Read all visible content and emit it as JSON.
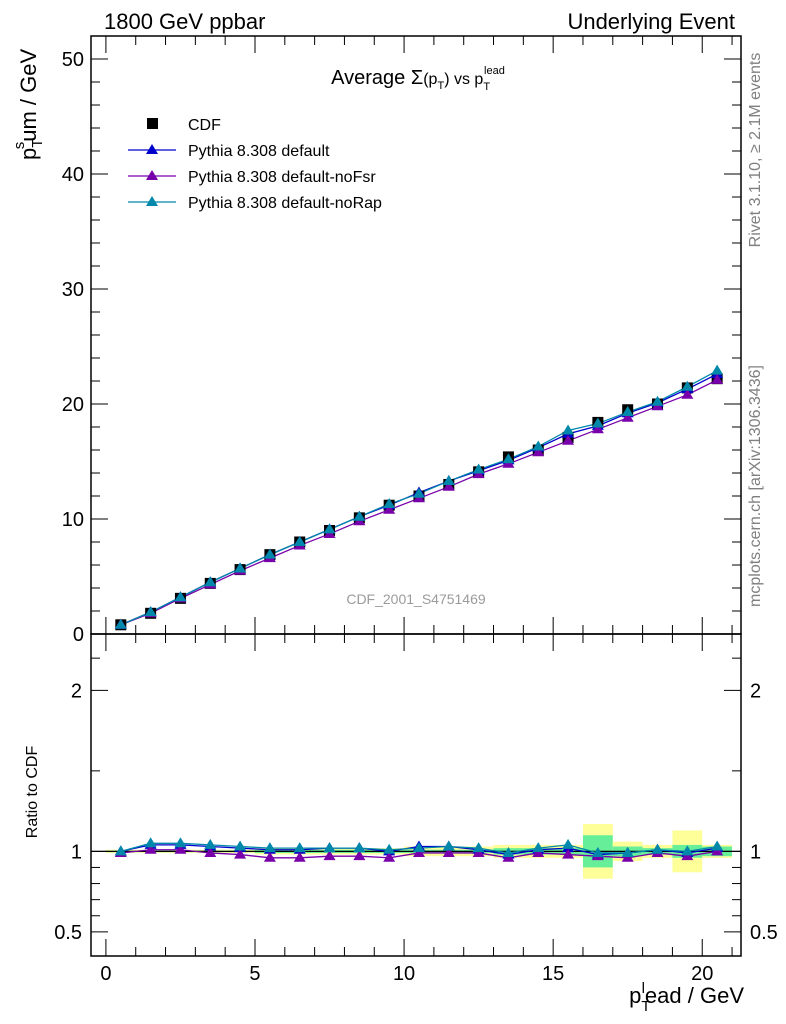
{
  "header": {
    "left": "1800 GeV ppbar",
    "right": "Underlying Event"
  },
  "side_text": {
    "rivet": "Rivet 3.1.10, ≥ 2.1M events",
    "mcplots": "mcplots.cern.ch [arXiv:1306.3436]"
  },
  "chart_data": [
    {
      "type": "line",
      "title": "Average Σ(p_T) vs p_T^lead",
      "title_parts": {
        "main": "Average ",
        "sigma": "Σ",
        "paren_open": "(p",
        "sub1": "T",
        "paren_close": ")",
        "vs": " vs p",
        "sub2": "T",
        "sup2": "lead"
      },
      "ylabel": "p_T^sum / GeV",
      "ylabel_parts": {
        "p": "p",
        "sub": "T",
        "sup": "s",
        "rest": "um / GeV"
      },
      "xlabel": "p_T^lead / GeV",
      "xlabel_parts": {
        "p": "p",
        "sub": "T",
        "sup": "l",
        "rest": "ead / GeV"
      },
      "annotation": "CDF_2001_S4751469",
      "xlim": [
        -0.5,
        21.3
      ],
      "ylim": [
        0,
        52
      ],
      "y_ticks": [
        "0",
        "10",
        "20",
        "30",
        "40",
        "50"
      ],
      "x": [
        0.5,
        1.5,
        2.5,
        3.5,
        4.5,
        5.5,
        6.5,
        7.5,
        8.5,
        9.5,
        10.5,
        11.5,
        12.5,
        13.5,
        14.5,
        15.5,
        16.5,
        17.5,
        18.5,
        19.5,
        20.5
      ],
      "legend": {
        "placement": "top-left"
      },
      "series": [
        {
          "name": "CDF",
          "color": "#000000",
          "marker": "square",
          "values": [
            0.8,
            1.8,
            3.1,
            4.4,
            5.6,
            6.9,
            8.0,
            9.0,
            10.1,
            11.2,
            12.0,
            13.0,
            14.1,
            15.4,
            16.0,
            17.1,
            18.4,
            19.5,
            20.0,
            21.4,
            22.2
          ]
        },
        {
          "name": "Pythia 8.308 default",
          "color": "#0000cc",
          "marker": "triangle",
          "values": [
            0.8,
            1.9,
            3.2,
            4.5,
            5.7,
            6.9,
            8.0,
            9.1,
            10.2,
            11.2,
            12.3,
            13.3,
            14.2,
            15.1,
            16.2,
            17.4,
            18.1,
            19.2,
            20.1,
            21.3,
            22.6
          ]
        },
        {
          "name": "Pythia 8.308 default-noFsr",
          "color": "#7700aa",
          "marker": "triangle",
          "values": [
            0.8,
            1.8,
            3.1,
            4.3,
            5.5,
            6.6,
            7.7,
            8.7,
            9.8,
            10.8,
            11.8,
            12.8,
            13.9,
            14.8,
            15.8,
            16.8,
            17.8,
            18.8,
            19.8,
            20.8,
            22.1
          ]
        },
        {
          "name": "Pythia 8.308 default-noRap",
          "color": "#0088aa",
          "marker": "triangle",
          "values": [
            0.8,
            1.9,
            3.2,
            4.5,
            5.7,
            6.9,
            8.0,
            9.1,
            10.2,
            11.3,
            12.2,
            13.3,
            14.3,
            15.2,
            16.3,
            17.7,
            18.3,
            19.3,
            20.2,
            21.5,
            22.9
          ]
        }
      ]
    },
    {
      "type": "line",
      "ylabel": "Ratio to CDF",
      "xlabel": "p_T^lead / GeV",
      "xlim": [
        -0.5,
        21.3
      ],
      "ylim": [
        0.35,
        2.35
      ],
      "y_ticks": [
        "0.5",
        "1",
        "2"
      ],
      "x_ticks": [
        "0",
        "5",
        "10",
        "15",
        "20"
      ],
      "x": [
        0.5,
        1.5,
        2.5,
        3.5,
        4.5,
        5.5,
        6.5,
        7.5,
        8.5,
        9.5,
        10.5,
        11.5,
        12.5,
        13.5,
        14.5,
        15.5,
        16.5,
        17.5,
        18.5,
        19.5,
        20.5
      ],
      "uncertainty_band": {
        "colors": {
          "stat": "#66ee99",
          "total": "#ffff99"
        },
        "total": [
          0.01,
          0.01,
          0.01,
          0.01,
          0.01,
          0.02,
          0.02,
          0.02,
          0.02,
          0.02,
          0.03,
          0.03,
          0.03,
          0.04,
          0.04,
          0.04,
          0.17,
          0.06,
          0.04,
          0.13,
          0.04
        ],
        "stat": [
          0.005,
          0.005,
          0.005,
          0.005,
          0.005,
          0.01,
          0.01,
          0.01,
          0.01,
          0.01,
          0.01,
          0.01,
          0.01,
          0.02,
          0.02,
          0.02,
          0.1,
          0.03,
          0.02,
          0.04,
          0.03
        ]
      },
      "series": [
        {
          "name": "Pythia 8.308 default",
          "color": "#0000cc",
          "values": [
            1.0,
            1.04,
            1.04,
            1.03,
            1.02,
            1.01,
            1.01,
            1.02,
            1.02,
            1.0,
            1.03,
            1.03,
            1.01,
            0.98,
            1.01,
            1.02,
            0.98,
            0.99,
            1.01,
            0.99,
            1.02
          ]
        },
        {
          "name": "Pythia 8.308 default-noFsr",
          "color": "#7700aa",
          "values": [
            0.99,
            1.01,
            1.01,
            0.99,
            0.98,
            0.96,
            0.96,
            0.97,
            0.97,
            0.96,
            0.99,
            0.99,
            0.99,
            0.96,
            0.99,
            0.98,
            0.97,
            0.96,
            0.99,
            0.97,
            1.0
          ]
        },
        {
          "name": "Pythia 8.308 default-noRap",
          "color": "#0088aa",
          "values": [
            1.0,
            1.05,
            1.05,
            1.04,
            1.03,
            1.02,
            1.02,
            1.02,
            1.02,
            1.01,
            1.02,
            1.03,
            1.02,
            0.99,
            1.02,
            1.04,
            0.99,
            0.99,
            1.01,
            1.0,
            1.03
          ]
        }
      ]
    }
  ]
}
